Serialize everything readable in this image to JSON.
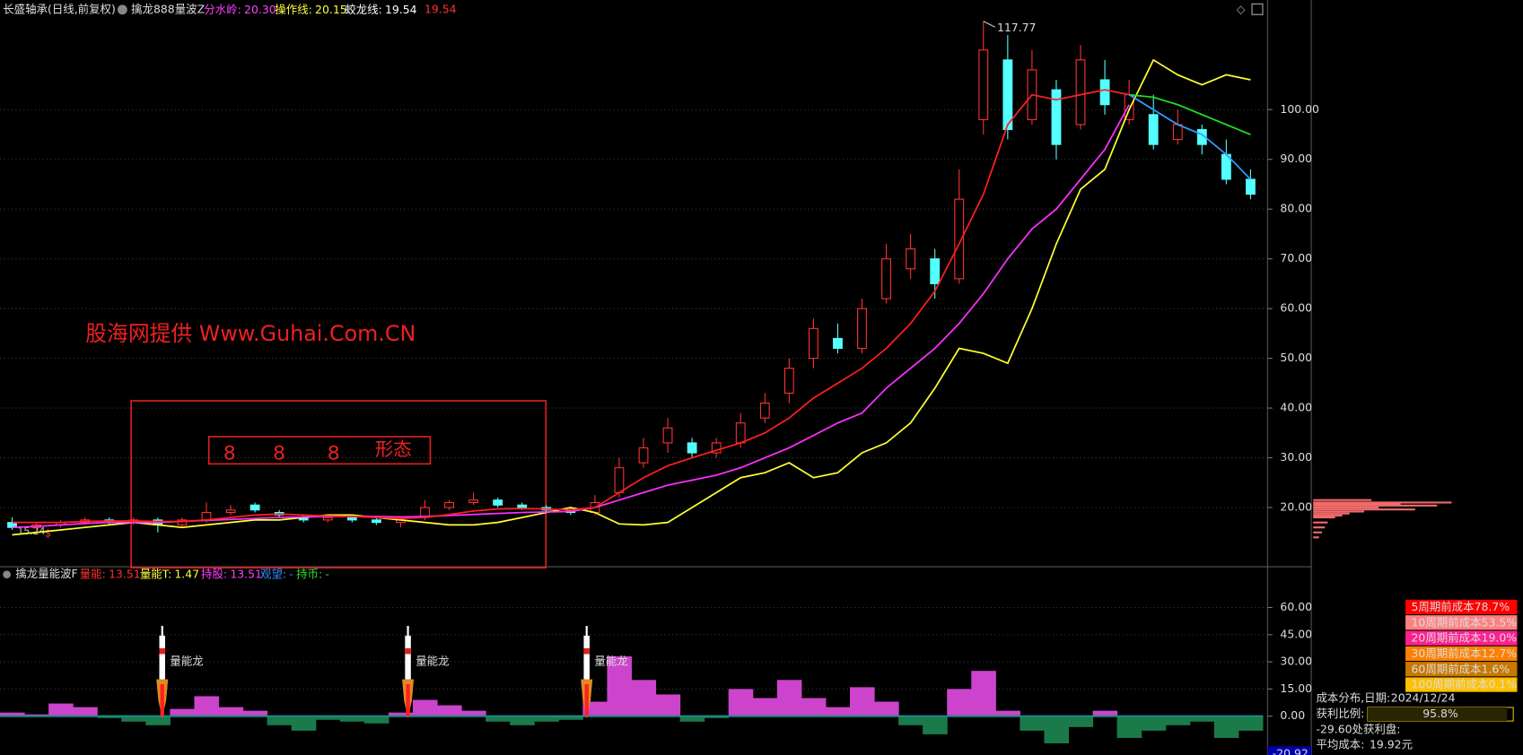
{
  "chart_data": [
    {
      "type": "candlestick",
      "title": "长盛轴承(日线,前复权)",
      "subtitle": "擒龙888量波Z",
      "indicators": [
        {
          "name": "分水岭:",
          "value": "20.30",
          "color": "#ff40ff"
        },
        {
          "name": "操作线:",
          "value": "20.15",
          "color": "#ffff40"
        },
        {
          "name": "蛟龙线:",
          "value": "19.54",
          "color": "#ffffff"
        }
      ],
      "indicator_extra": "19.54",
      "categories": [
        null,
        null,
        null,
        null,
        null,
        null,
        null,
        null,
        null,
        null,
        null,
        null,
        null,
        null,
        null,
        null,
        null,
        null,
        null,
        null,
        null,
        null,
        null,
        null,
        null,
        null,
        null,
        null,
        null,
        null,
        null,
        null,
        null,
        null,
        null,
        null,
        null,
        null,
        null,
        null,
        null,
        null,
        null,
        null,
        null,
        null,
        null,
        null,
        null,
        null,
        null,
        null
      ],
      "open": [
        17,
        16,
        16.5,
        17,
        17.5,
        17,
        17.5,
        16.5,
        17.5,
        19,
        20.5,
        19,
        18,
        17.5,
        18,
        17.5,
        17,
        18,
        20,
        21,
        21.5,
        20.5,
        20,
        19.5,
        19,
        23,
        29,
        33,
        33,
        31,
        33,
        38,
        43,
        50,
        54,
        52,
        62,
        68,
        70,
        66,
        98,
        110,
        98,
        104,
        97,
        106,
        98,
        99,
        94,
        96,
        91,
        86
      ],
      "high": [
        18,
        17,
        17.5,
        18,
        18,
        18,
        18,
        18,
        21,
        20.5,
        21,
        19.5,
        18.5,
        18.5,
        18.5,
        18,
        18,
        21.5,
        21.5,
        23,
        22,
        21,
        20.5,
        20,
        22.5,
        30,
        34,
        38,
        34,
        34,
        39,
        43,
        50,
        58,
        57,
        62,
        73,
        75,
        72,
        88,
        117.77,
        115,
        112,
        106,
        113,
        110,
        106,
        103,
        100,
        97,
        94,
        88
      ],
      "low": [
        15.5,
        15.5,
        16,
        16.5,
        16.5,
        16.5,
        15,
        16,
        17,
        18.5,
        19,
        18,
        17,
        17,
        17,
        16.5,
        16,
        17.5,
        19.5,
        20.5,
        20,
        19.5,
        19,
        18.5,
        18.5,
        22,
        28,
        31,
        30,
        30,
        32,
        37,
        41,
        48,
        51,
        51,
        61,
        66,
        62,
        65,
        95,
        94,
        97,
        90,
        96,
        99,
        97,
        92,
        93,
        91,
        85,
        82
      ],
      "close": [
        16,
        16.5,
        17,
        17.5,
        17,
        17.5,
        16.5,
        17.5,
        19,
        19.5,
        19.5,
        18.5,
        17.5,
        18,
        17.5,
        17,
        17.5,
        20,
        21,
        21.5,
        20.5,
        20,
        19.5,
        19,
        21,
        28,
        32,
        36,
        31,
        33,
        37,
        41,
        48,
        56,
        52,
        60,
        70,
        72,
        65,
        82,
        112,
        96,
        108,
        93,
        110,
        101,
        103,
        93,
        97,
        93,
        86,
        83
      ],
      "up_color": "#ff3232",
      "down_color": "#54ffff",
      "lines": [
        {
          "color": "#ffff30",
          "values": [
            14.5,
            15,
            15.5,
            16,
            16.5,
            17,
            16.5,
            16,
            16.5,
            17,
            17.5,
            17.5,
            18,
            18.5,
            18.5,
            18,
            17.5,
            17,
            16.5,
            16.5,
            17,
            18,
            19,
            20,
            19,
            16.7,
            16.5,
            17,
            20,
            23,
            26,
            27,
            29,
            26,
            27,
            31,
            33,
            37,
            44,
            52,
            51,
            49,
            60,
            73,
            84,
            88,
            100,
            110,
            107,
            105,
            107,
            106
          ]
        },
        {
          "color": "#ff30ff",
          "values": [
            16,
            16.2,
            16.5,
            16.8,
            17,
            17,
            17,
            17.2,
            17.4,
            17.6,
            17.8,
            18,
            18.1,
            18.2,
            18.2,
            18.2,
            18.1,
            18.2,
            18.4,
            18.6,
            18.8,
            19,
            19.1,
            19.2,
            20,
            21.5,
            23,
            24.5,
            25.5,
            26.5,
            28,
            30,
            32,
            34.5,
            37,
            39,
            44,
            48,
            52,
            57,
            63,
            70,
            76,
            80,
            86,
            92,
            101,
            null,
            null,
            null,
            null,
            null
          ]
        },
        {
          "color": "#20e020",
          "values": [
            null,
            null,
            null,
            null,
            null,
            null,
            null,
            null,
            null,
            null,
            null,
            null,
            null,
            null,
            null,
            null,
            null,
            null,
            null,
            null,
            null,
            null,
            null,
            null,
            null,
            null,
            null,
            null,
            null,
            null,
            null,
            null,
            null,
            null,
            null,
            null,
            null,
            null,
            null,
            null,
            null,
            null,
            null,
            null,
            null,
            null,
            103,
            102.5,
            101,
            99,
            97,
            95
          ]
        },
        {
          "color": "#ff2020",
          "values": [
            17,
            17,
            17,
            17.2,
            17.3,
            17.3,
            17.2,
            17.2,
            17.5,
            18,
            18.5,
            18.7,
            18.5,
            18.3,
            18.2,
            18,
            17.8,
            18,
            18.6,
            19.3,
            19.7,
            19.8,
            19.7,
            19.5,
            20,
            23,
            26,
            28.4,
            30,
            31.5,
            33,
            35,
            38,
            42,
            45,
            48,
            52,
            57,
            63.5,
            73,
            83,
            97,
            103,
            102,
            103,
            104,
            103,
            null,
            null,
            null,
            null,
            null
          ]
        },
        {
          "color": "#30a0ff",
          "values": [
            null,
            null,
            null,
            null,
            null,
            null,
            null,
            null,
            null,
            null,
            null,
            null,
            null,
            null,
            null,
            null,
            null,
            null,
            null,
            null,
            null,
            null,
            null,
            null,
            null,
            null,
            null,
            null,
            null,
            null,
            null,
            null,
            null,
            null,
            null,
            null,
            null,
            null,
            null,
            null,
            null,
            null,
            null,
            null,
            null,
            null,
            103,
            100,
            97,
            95,
            91,
            86
          ]
        }
      ],
      "ylim": [
        8.29,
        119.12
      ],
      "yticks": [
        {
          "value": 20,
          "label": "20.00"
        },
        {
          "value": 30,
          "label": "30.00"
        },
        {
          "value": 40,
          "label": "40.00"
        },
        {
          "value": 50,
          "label": "50.00"
        },
        {
          "value": 60,
          "label": "60.00"
        },
        {
          "value": 70,
          "label": "70.00"
        },
        {
          "value": 80,
          "label": "80.00"
        },
        {
          "value": 90,
          "label": "90.00"
        },
        {
          "value": 100,
          "label": "100.00"
        }
      ],
      "grid": true,
      "watermark": "股海网提供 Www.Guhai.Com.CN",
      "pattern_digits": [
        "8",
        "8",
        "8"
      ],
      "pattern_label": "形态",
      "left_label": "15.24",
      "marker": "$"
    },
    {
      "type": "bar",
      "title": "擒龙量能波F",
      "indicators": [
        {
          "name": "量能:",
          "value": "13.51",
          "color": "#ff3030"
        },
        {
          "name": "量能T:",
          "value": "1.47",
          "color": "#ffff40"
        },
        {
          "name": "持股:",
          "value": "13.51",
          "color": "#ff40ff"
        },
        {
          "name": "观望:",
          "value": "-",
          "color": "#3090ff"
        },
        {
          "name": "持币:",
          "value": "-",
          "color": "#30e030"
        }
      ],
      "values": [
        2,
        1,
        7,
        5,
        -1,
        -3,
        -5,
        4,
        11,
        5,
        3,
        -5,
        -8,
        -2,
        -3,
        -4,
        2,
        9,
        6,
        3,
        -3,
        -5,
        -3,
        -2,
        8,
        33,
        20,
        12,
        -3,
        -1,
        15,
        10,
        20,
        10,
        5,
        16,
        8,
        -5,
        -10,
        15,
        25,
        3,
        -8,
        -15,
        -6,
        3,
        -12,
        -8,
        -5,
        -3,
        -12,
        -8
      ],
      "pos_color": "#cc44cc",
      "neg_color": "#1a7a4a",
      "ylim": [
        -21.43,
        73.93
      ],
      "yticks": [
        {
          "value": 0,
          "label": "0.00"
        },
        {
          "value": 15,
          "label": "15.00"
        },
        {
          "value": 30,
          "label": "30.00"
        },
        {
          "value": 45,
          "label": "45.00"
        },
        {
          "value": 60,
          "label": "60.00"
        }
      ],
      "last_value": -20.92,
      "rocket_label": "量能龙"
    },
    {
      "type": "cost-distribution",
      "prices": [
        21.5,
        21.0,
        20.7,
        20.4,
        20.0,
        19.6,
        19.2,
        18.8,
        18.4,
        18.0,
        17.0,
        16.0,
        15.0,
        14.0
      ],
      "values": [
        40,
        95,
        60,
        85,
        45,
        70,
        35,
        25,
        20,
        15,
        10,
        8,
        6,
        4
      ],
      "color": "#f06a6a",
      "xlim": [
        0,
        100
      ],
      "legend_rows": [
        {
          "label": "5周期前成本78.7%",
          "color": "#ff0000"
        },
        {
          "label": "10周期前成本53.5%",
          "color": "#ff8080"
        },
        {
          "label": "20周期前成本19.0%",
          "color": "#ff2090"
        },
        {
          "label": "30周期前成本12.7%",
          "color": "#ff8000"
        },
        {
          "label": "60周期前成本1.6%",
          "color": "#c87800"
        },
        {
          "label": "100周期前成本0.1%",
          "color": "#ffc000"
        }
      ],
      "date_label": "成本分布,日期:",
      "date": "2024/12/24",
      "profit_label": "获利比例:",
      "profit_ratio": 95.8,
      "profit_ratio_label": "95.8%",
      "profit_at": "-29.60处获利盘:",
      "avg_cost_label": "平均成本:",
      "avg_cost": "19.92元"
    }
  ]
}
